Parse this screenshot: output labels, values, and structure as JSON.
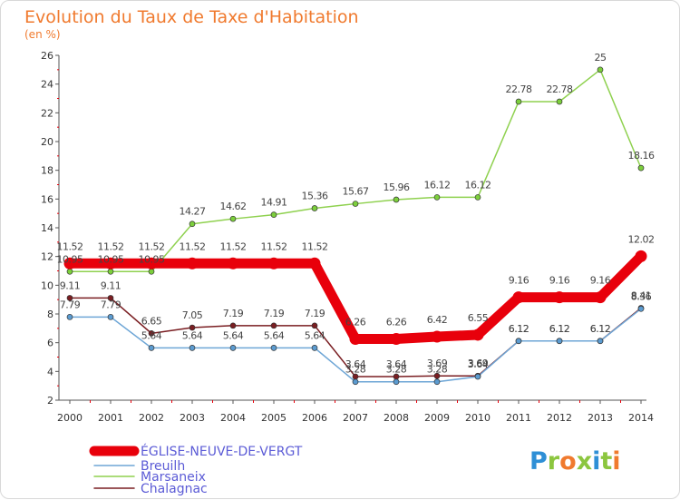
{
  "title": "Evolution du Taux de Taxe d'Habitation",
  "subtitle": "(en %)",
  "logo": {
    "text": "Proxiti",
    "letter_colors": [
      "#2e8fd6",
      "#8cc63f",
      "#f07a2e",
      "#8cc63f",
      "#2e8fd6",
      "#8cc63f",
      "#f07a2e"
    ]
  },
  "chart_data": {
    "type": "line",
    "x": [
      "2000",
      "2001",
      "2002",
      "2003",
      "2004",
      "2005",
      "2006",
      "2007",
      "2008",
      "2009",
      "2010",
      "2011",
      "2012",
      "2013",
      "2014"
    ],
    "yticks": [
      "2",
      "4",
      "6",
      "8",
      "10",
      "12",
      "14",
      "16",
      "18",
      "20",
      "22",
      "24",
      "26"
    ],
    "ylim": [
      2,
      26
    ],
    "grid": false,
    "legend_position": "bottom-left",
    "series": [
      {
        "name": "ÉGLISE-NEUVE-DE-VERGT",
        "color": "#e8000b",
        "values": [
          11.52,
          11.52,
          11.52,
          11.52,
          11.52,
          11.52,
          11.52,
          6.26,
          6.26,
          6.42,
          6.55,
          9.16,
          9.16,
          9.16,
          12.02
        ],
        "labels": [
          "11.52",
          "11.52",
          "11.52",
          "11.52",
          "11.52",
          "11.52",
          "11.52",
          "6.26",
          "6.26",
          "6.42",
          "6.55",
          "9.16",
          "9.16",
          "9.16",
          "12.02"
        ]
      },
      {
        "name": "Breuilh",
        "color": "#6ea6d6",
        "values": [
          7.79,
          7.79,
          5.64,
          5.64,
          5.64,
          5.64,
          5.64,
          3.28,
          3.28,
          3.28,
          3.64,
          6.12,
          6.12,
          6.12,
          8.36
        ],
        "labels": [
          "7.79",
          "7.79",
          "5.64",
          "5.64",
          "5.64",
          "5.64",
          "5.64",
          "3.28",
          "3.28",
          "3.28",
          "3.64",
          "6.12",
          "6.12",
          "6.12",
          "8.36"
        ]
      },
      {
        "name": "Marsaneix",
        "color": "#8fd14f",
        "values": [
          10.95,
          10.95,
          10.95,
          14.27,
          14.62,
          14.91,
          15.36,
          15.67,
          15.96,
          16.12,
          16.12,
          22.78,
          22.78,
          25,
          18.16
        ],
        "labels": [
          "10.95",
          "10.95",
          "10.95",
          "14.27",
          "14.62",
          "14.91",
          "15.36",
          "15.67",
          "15.96",
          "16.12",
          "16.12",
          "22.78",
          "22.78",
          "25",
          "18.16"
        ]
      },
      {
        "name": "Chalagnac",
        "color": "#7a1e22",
        "values": [
          9.11,
          9.11,
          6.65,
          7.05,
          7.19,
          7.19,
          7.19,
          3.64,
          3.64,
          3.69,
          3.69,
          6.12,
          6.12,
          6.12,
          8.41
        ],
        "labels": [
          "9.11",
          "9.11",
          "6.65",
          "7.05",
          "7.19",
          "7.19",
          "7.19",
          "3.64",
          "3.64",
          "3.69",
          "3.69",
          "6.12",
          "6.12",
          "6.12",
          "8.41"
        ]
      }
    ]
  }
}
